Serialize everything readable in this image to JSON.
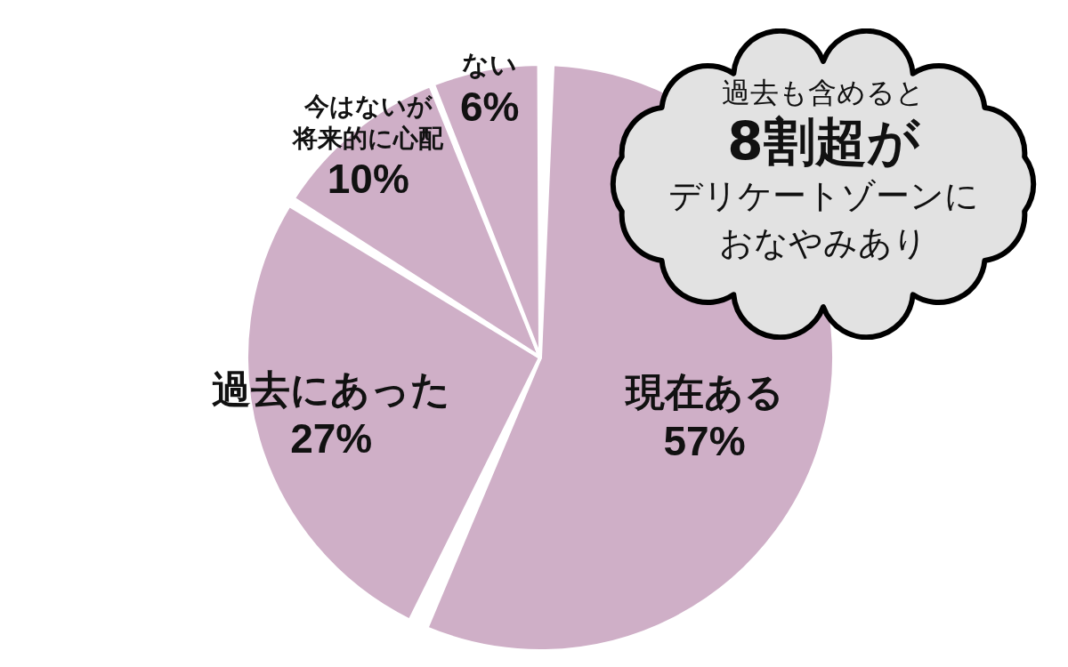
{
  "chart_data": {
    "type": "pie",
    "categories": [
      "現在ある",
      "過去にあった",
      "今はないが将来的に心配",
      "ない"
    ],
    "values": [
      57,
      27,
      10,
      6
    ],
    "colors": [
      "#cfafc7",
      "#cfafc7",
      "#cfafc7",
      "#cfafc7"
    ],
    "value_labels": [
      "57%",
      "27%",
      "10%",
      "6%"
    ],
    "annotations": [
      "過去も含めると",
      "8割超が",
      "デリケートゾーンに",
      "おなやみあり"
    ]
  }
}
